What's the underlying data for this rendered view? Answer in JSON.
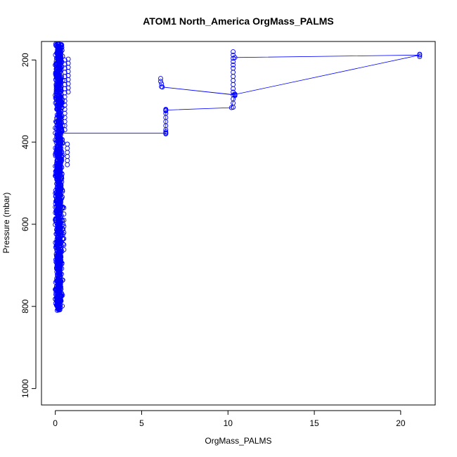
{
  "chart_data": {
    "type": "scatter",
    "title": "ATOM1 North_America OrgMass_PALMS",
    "xlabel": "OrgMass_PALMS",
    "ylabel": "Pressure (mbar)",
    "xlim": [
      -0.8,
      22.0
    ],
    "ylim": [
      1040,
      155
    ],
    "y_reversed": true,
    "x_ticks": [
      0,
      5,
      10,
      15,
      20
    ],
    "x_tick_labels": [
      "0",
      "5",
      "10",
      "15",
      "20"
    ],
    "y_ticks": [
      200,
      400,
      600,
      800,
      1000
    ],
    "y_tick_labels": [
      "200",
      "400",
      "600",
      "800",
      "1000"
    ],
    "grid": false,
    "legend": "none",
    "series_color": "#0000ff",
    "line_path": [
      [
        0.0,
        378
      ],
      [
        0.1,
        378
      ],
      [
        6.4,
        378
      ],
      [
        6.4,
        322
      ],
      [
        10.2,
        316
      ],
      [
        10.4,
        285
      ],
      [
        6.2,
        266
      ],
      [
        10.3,
        285
      ],
      [
        21.1,
        188
      ],
      [
        10.4,
        194
      ]
    ],
    "outlier_points": [
      [
        6.1,
        245
      ],
      [
        6.1,
        252
      ],
      [
        6.15,
        258
      ],
      [
        6.15,
        265
      ],
      [
        6.4,
        320
      ],
      [
        6.4,
        322
      ],
      [
        6.4,
        324
      ],
      [
        6.4,
        330
      ],
      [
        6.4,
        340
      ],
      [
        6.4,
        350
      ],
      [
        6.4,
        360
      ],
      [
        6.4,
        370
      ],
      [
        6.4,
        375
      ],
      [
        6.4,
        378
      ],
      [
        6.4,
        380
      ],
      [
        10.3,
        180
      ],
      [
        10.3,
        188
      ],
      [
        10.3,
        196
      ],
      [
        10.3,
        204
      ],
      [
        10.3,
        212
      ],
      [
        10.3,
        220
      ],
      [
        10.3,
        230
      ],
      [
        10.3,
        240
      ],
      [
        10.3,
        250
      ],
      [
        10.3,
        260
      ],
      [
        10.3,
        270
      ],
      [
        10.3,
        278
      ],
      [
        10.4,
        283
      ],
      [
        10.4,
        285
      ],
      [
        10.4,
        287
      ],
      [
        10.3,
        295
      ],
      [
        10.3,
        305
      ],
      [
        10.3,
        315
      ],
      [
        21.1,
        186
      ],
      [
        21.1,
        192
      ],
      [
        0.55,
        200
      ],
      [
        0.55,
        210
      ],
      [
        0.55,
        220
      ],
      [
        0.55,
        230
      ],
      [
        0.55,
        240
      ],
      [
        0.55,
        250
      ],
      [
        0.55,
        260
      ],
      [
        0.55,
        270
      ],
      [
        0.55,
        280
      ],
      [
        0.55,
        290
      ],
      [
        0.55,
        300
      ],
      [
        0.55,
        310
      ],
      [
        0.55,
        320
      ],
      [
        0.55,
        330
      ],
      [
        0.55,
        340
      ],
      [
        0.55,
        350
      ],
      [
        0.55,
        360
      ],
      [
        0.55,
        370
      ],
      [
        0.75,
        198
      ],
      [
        0.75,
        208
      ],
      [
        0.75,
        218
      ],
      [
        0.75,
        228
      ],
      [
        0.75,
        238
      ],
      [
        0.75,
        248
      ],
      [
        0.75,
        258
      ],
      [
        0.75,
        268
      ],
      [
        0.75,
        278
      ],
      [
        0.7,
        405
      ],
      [
        0.7,
        415
      ],
      [
        0.7,
        425
      ],
      [
        0.7,
        435
      ],
      [
        0.7,
        445
      ],
      [
        0.7,
        455
      ],
      [
        0.5,
        560
      ],
      [
        0.5,
        575
      ],
      [
        0.5,
        590
      ],
      [
        0.5,
        605
      ],
      [
        0.5,
        620
      ],
      [
        0.5,
        635
      ],
      [
        0.5,
        650
      ],
      [
        0.5,
        662
      ],
      [
        0.45,
        600
      ],
      [
        0.45,
        612
      ],
      [
        0.45,
        624
      ],
      [
        0.45,
        636
      ],
      [
        0.45,
        648
      ]
    ],
    "dense_column": {
      "x_center": 0.2,
      "x_spread": 0.18,
      "y_range": [
        160,
        812
      ],
      "point_count": 1200
    }
  }
}
